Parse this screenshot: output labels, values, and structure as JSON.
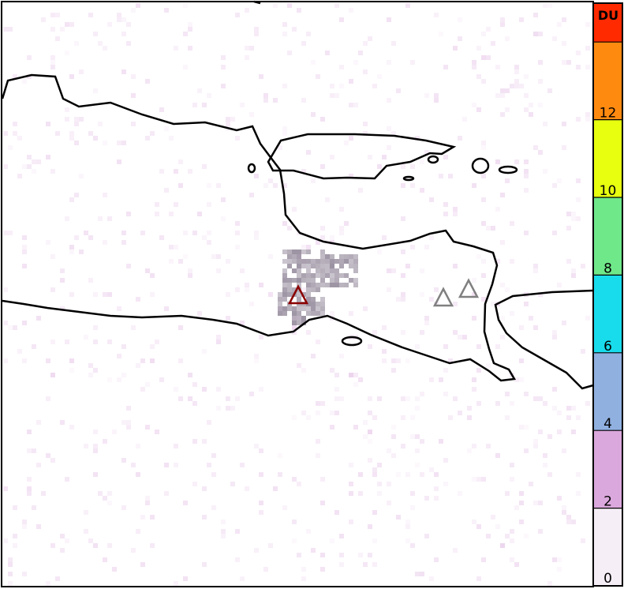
{
  "map": {
    "volcanoes": [
      {
        "status": "active",
        "color": "#8b0000"
      },
      {
        "status": "other",
        "color": "#808080"
      },
      {
        "status": "other",
        "color": "#808080"
      }
    ],
    "plume_color": "#8a7f92"
  },
  "colorbar": {
    "unit": "DU",
    "ticks": [
      "0",
      "2",
      "4",
      "6",
      "8",
      "10",
      "12"
    ],
    "range": [
      0,
      15
    ],
    "colors": [
      {
        "from": 0,
        "to": 2,
        "color": "#f6eef6"
      },
      {
        "from": 2,
        "to": 4,
        "color": "#dba8dd"
      },
      {
        "from": 4,
        "to": 6,
        "color": "#90b0e0"
      },
      {
        "from": 6,
        "to": 8,
        "color": "#18dcec"
      },
      {
        "from": 8,
        "to": 10,
        "color": "#6fe88a"
      },
      {
        "from": 10,
        "to": 12,
        "color": "#e8ff10"
      },
      {
        "from": 12,
        "to": 14,
        "color": "#ff8a10"
      },
      {
        "from": 14,
        "to": 15,
        "color": "#ff2a00"
      }
    ]
  }
}
